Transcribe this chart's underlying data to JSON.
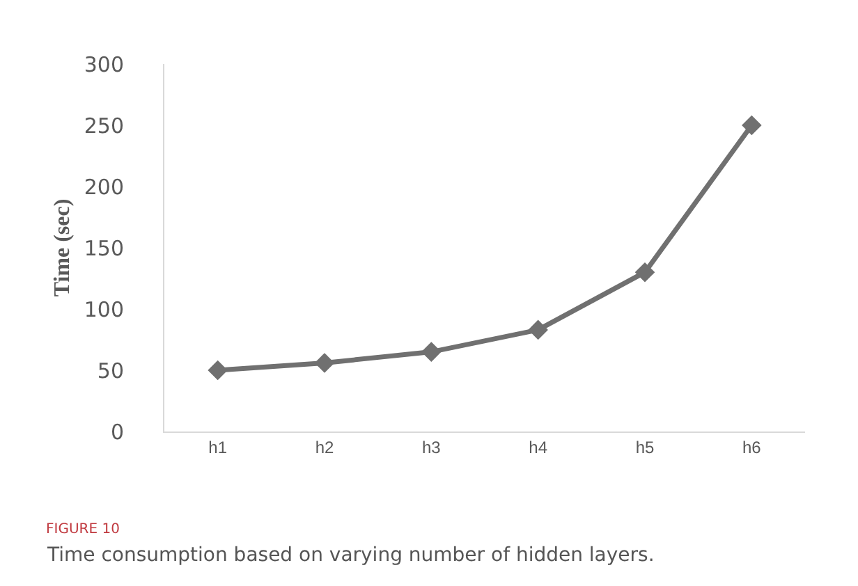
{
  "chart_data": {
    "type": "line",
    "ylabel": "Time (sec)",
    "categories": [
      "h1",
      "h2",
      "h3",
      "h4",
      "h5",
      "h6"
    ],
    "series": [
      {
        "color": "#707070",
        "values": [
          50,
          56,
          65,
          83,
          130,
          250
        ]
      }
    ],
    "ylim": [
      0,
      300
    ],
    "yticks": [
      0,
      50,
      100,
      150,
      200,
      250,
      300
    ],
    "grid": false,
    "legend": false,
    "marker": "diamond",
    "line_style": "solid",
    "annotations": [
      "FIGURE 10",
      "Time consumption based on varying number of hidden layers."
    ]
  }
}
